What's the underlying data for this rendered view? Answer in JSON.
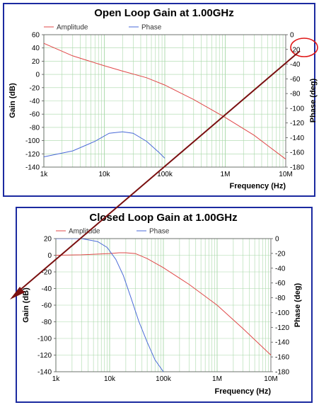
{
  "colors": {
    "amplitude": "#e04848",
    "phase": "#4a6ad8",
    "frame": "#1b2aa0",
    "grid": "#a8d8a8",
    "arrow": "#7a1010",
    "circle": "#e01818"
  },
  "chart_data": [
    {
      "type": "line",
      "title": "Open Loop Gain at 1.00GHz",
      "xlabel": "Frequency (Hz)",
      "ylabel": "Gain (dB)",
      "y2label": "Phase (deg)",
      "xscale": "log",
      "xlim": [
        1000,
        10000000
      ],
      "xticks": [
        1000,
        10000,
        100000,
        1000000,
        10000000
      ],
      "xticklabels": [
        "1k",
        "10k",
        "100k",
        "1M",
        "10M"
      ],
      "ylim": [
        -140,
        60
      ],
      "yticks": [
        60,
        40,
        20,
        0,
        -20,
        -40,
        -60,
        -80,
        -100,
        -120,
        -140
      ],
      "y2lim": [
        -180,
        0
      ],
      "y2ticks": [
        0,
        -20,
        -40,
        -60,
        -80,
        -100,
        -120,
        -140,
        -160,
        -180
      ],
      "grid": true,
      "legend": "top-left",
      "series": [
        {
          "name": "Amplitude",
          "axis": "left",
          "x": [
            1000,
            3000,
            10000,
            20000,
            50000,
            100000,
            300000,
            1000000,
            3000000,
            10000000
          ],
          "y": [
            47,
            28,
            13,
            5,
            -5,
            -16,
            -38,
            -65,
            -92,
            -128
          ]
        },
        {
          "name": "Phase",
          "axis": "right",
          "x": [
            1000,
            3000,
            7000,
            12000,
            20000,
            30000,
            50000,
            80000,
            100000
          ],
          "y": [
            -166,
            -158,
            -145,
            -134,
            -132,
            -134,
            -145,
            -160,
            -168
          ]
        }
      ]
    },
    {
      "type": "line",
      "title": "Closed Loop Gain at 1.00GHz",
      "xlabel": "Frequency (Hz)",
      "ylabel": "Gain (dB)",
      "y2label": "Phase (deg)",
      "xscale": "log",
      "xlim": [
        1000,
        10000000
      ],
      "xticks": [
        1000,
        10000,
        100000,
        1000000,
        10000000
      ],
      "xticklabels": [
        "1k",
        "10k",
        "100k",
        "1M",
        "10M"
      ],
      "ylim": [
        -140,
        20
      ],
      "yticks": [
        20,
        0,
        -20,
        -40,
        -60,
        -80,
        -100,
        -120,
        -140
      ],
      "y2lim": [
        -180,
        0
      ],
      "y2ticks": [
        0,
        -20,
        -40,
        -60,
        -80,
        -100,
        -120,
        -140,
        -160,
        -180
      ],
      "grid": true,
      "legend": "top-left",
      "series": [
        {
          "name": "Amplitude",
          "axis": "left",
          "x": [
            1000,
            3000,
            10000,
            15000,
            20000,
            30000,
            50000,
            100000,
            300000,
            1000000,
            3000000,
            10000000
          ],
          "y": [
            0,
            0.5,
            2,
            3,
            3,
            2,
            -4,
            -15,
            -35,
            -60,
            -88,
            -120
          ]
        },
        {
          "name": "Phase",
          "axis": "right",
          "x": [
            1000,
            3000,
            6000,
            9000,
            13000,
            18000,
            25000,
            35000,
            50000,
            70000,
            100000
          ],
          "y": [
            0,
            0,
            -4,
            -12,
            -28,
            -50,
            -80,
            -112,
            -140,
            -164,
            -180
          ]
        }
      ]
    }
  ]
}
